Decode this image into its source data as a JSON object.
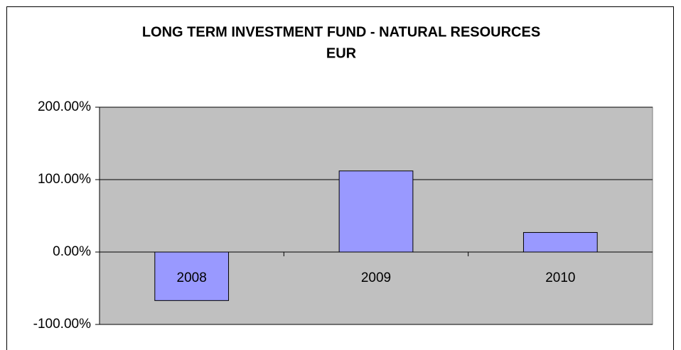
{
  "chart_data": {
    "type": "bar",
    "title": "LONG TERM INVESTMENT FUND - NATURAL RESOURCES",
    "subtitle": "EUR",
    "categories": [
      "2008",
      "2009",
      "2010"
    ],
    "values": [
      -67,
      112,
      27
    ],
    "color": "#9999ff",
    "ylim": [
      -100,
      200
    ],
    "yticks": [
      {
        "value": -100,
        "label": "-100.00%"
      },
      {
        "value": 0,
        "label": "0.00%"
      },
      {
        "value": 100,
        "label": "100.00%"
      },
      {
        "value": 200,
        "label": "200.00%"
      }
    ],
    "grid": true
  }
}
